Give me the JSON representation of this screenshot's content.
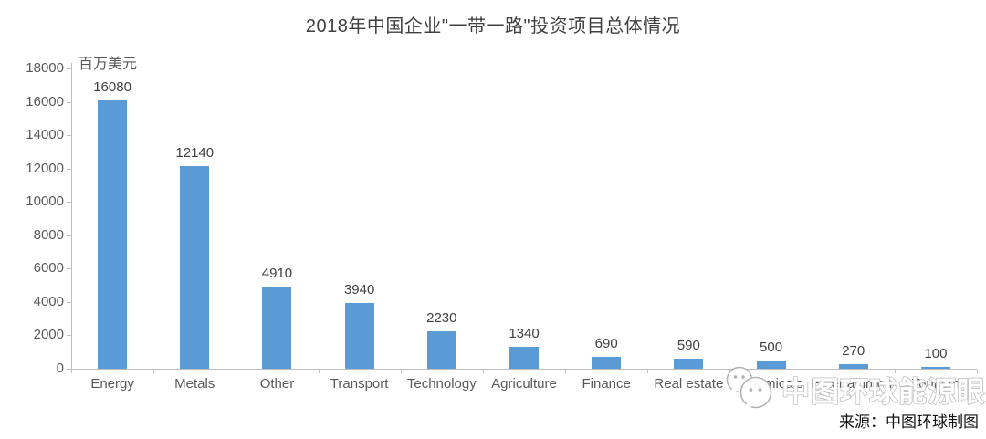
{
  "title": "2018年中国企业\"一带一路\"投资项目总体情况",
  "source": {
    "text": "来源：中图环球制图"
  },
  "watermark": {
    "icon": "wechat-bubbles-icon",
    "text": "中图环球能源眼"
  },
  "colors": {
    "bar": "#5b9bd5",
    "axis": "#bfbfbf",
    "tick_label": "#595959",
    "value_label": "#404040",
    "title": "#404040"
  },
  "chart_data": {
    "type": "bar",
    "title": "2018年中国企业\"一带一路\"投资项目总体情况",
    "categories": [
      "Energy",
      "Metals",
      "Other",
      "Transport",
      "Technology",
      "Agriculture",
      "Finance",
      "Real estate",
      "Chemicals",
      "Entertainment",
      "Tourism"
    ],
    "values": [
      16080,
      12140,
      4910,
      3940,
      2230,
      1340,
      690,
      590,
      500,
      270,
      100
    ],
    "xlabel": "",
    "ylabel": "百万美元",
    "ylim": [
      0,
      18000
    ],
    "yticks": [
      0,
      2000,
      4000,
      6000,
      8000,
      10000,
      12000,
      14000,
      16000,
      18000
    ],
    "grid": false,
    "legend": "none",
    "value_labels": true,
    "bar_color": "#5b9bd5"
  }
}
